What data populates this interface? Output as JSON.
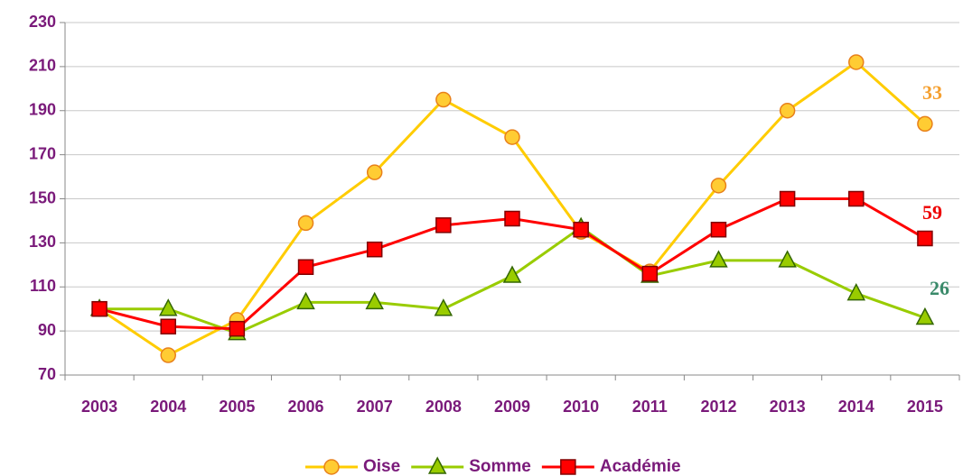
{
  "chart_data": {
    "type": "line",
    "categories": [
      "2003",
      "2004",
      "2005",
      "2006",
      "2007",
      "2008",
      "2009",
      "2010",
      "2011",
      "2012",
      "2013",
      "2014",
      "2015"
    ],
    "series": [
      {
        "name": "Oise",
        "color": "#ffcc00",
        "marker": "circle",
        "marker_fill": "#ffcc33",
        "marker_stroke": "#e8801a",
        "values": [
          100,
          79,
          95,
          139,
          162,
          195,
          178,
          135,
          117,
          156,
          190,
          212,
          184
        ]
      },
      {
        "name": "Somme",
        "color": "#99cc00",
        "marker": "triangle",
        "marker_fill": "#99cc00",
        "marker_stroke": "#336600",
        "values": [
          100,
          100,
          89,
          103,
          103,
          100,
          115,
          137,
          115,
          122,
          122,
          107,
          96
        ]
      },
      {
        "name": "Académie",
        "color": "#ff0000",
        "marker": "square",
        "marker_fill": "#ff0000",
        "marker_stroke": "#800000",
        "values": [
          100,
          92,
          91,
          119,
          127,
          138,
          141,
          136,
          116,
          136,
          150,
          150,
          132
        ]
      }
    ],
    "annotations": [
      {
        "text": "33",
        "color": "#f5a030"
      },
      {
        "text": "59",
        "color": "#ee0000"
      },
      {
        "text": "26",
        "color": "#3a8a6a"
      }
    ],
    "ylim": [
      70,
      230
    ],
    "yticks": [
      70,
      90,
      110,
      130,
      150,
      170,
      190,
      210,
      230
    ],
    "grid": true,
    "legend": "bottom"
  }
}
